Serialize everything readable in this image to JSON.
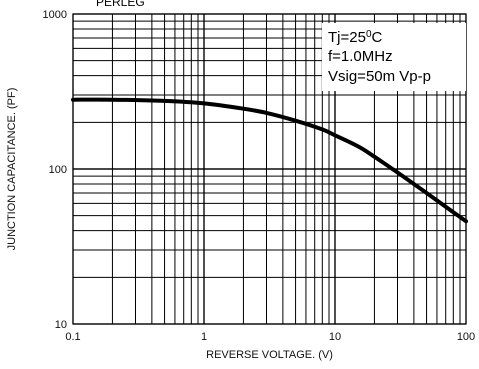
{
  "chart_data": {
    "type": "line",
    "title": "PERLEG",
    "xlabel": "REVERSE VOLTAGE. (V)",
    "ylabel": "JUNCTION CAPACITANCE. (PF)",
    "xscale": "log",
    "yscale": "log",
    "xlim": [
      0.1,
      100
    ],
    "ylim": [
      10,
      1000
    ],
    "x_ticks": [
      "0.1",
      "1",
      "10",
      "100"
    ],
    "y_ticks": [
      "10",
      "100",
      "1000"
    ],
    "grid": true,
    "annotation": {
      "lines": [
        "Tj=25",
        "f=1.0MHz",
        "Vsig=50m Vp-p"
      ],
      "degree_suffix": "0",
      "degree_unit": "C"
    },
    "series": [
      {
        "x": [
          0.1,
          0.2,
          0.5,
          1,
          2,
          3,
          5,
          8,
          10,
          15,
          20,
          30,
          50,
          70,
          100
        ],
        "y": [
          280,
          280,
          275,
          265,
          245,
          230,
          205,
          180,
          165,
          140,
          120,
          95,
          70,
          57,
          46
        ]
      }
    ]
  }
}
